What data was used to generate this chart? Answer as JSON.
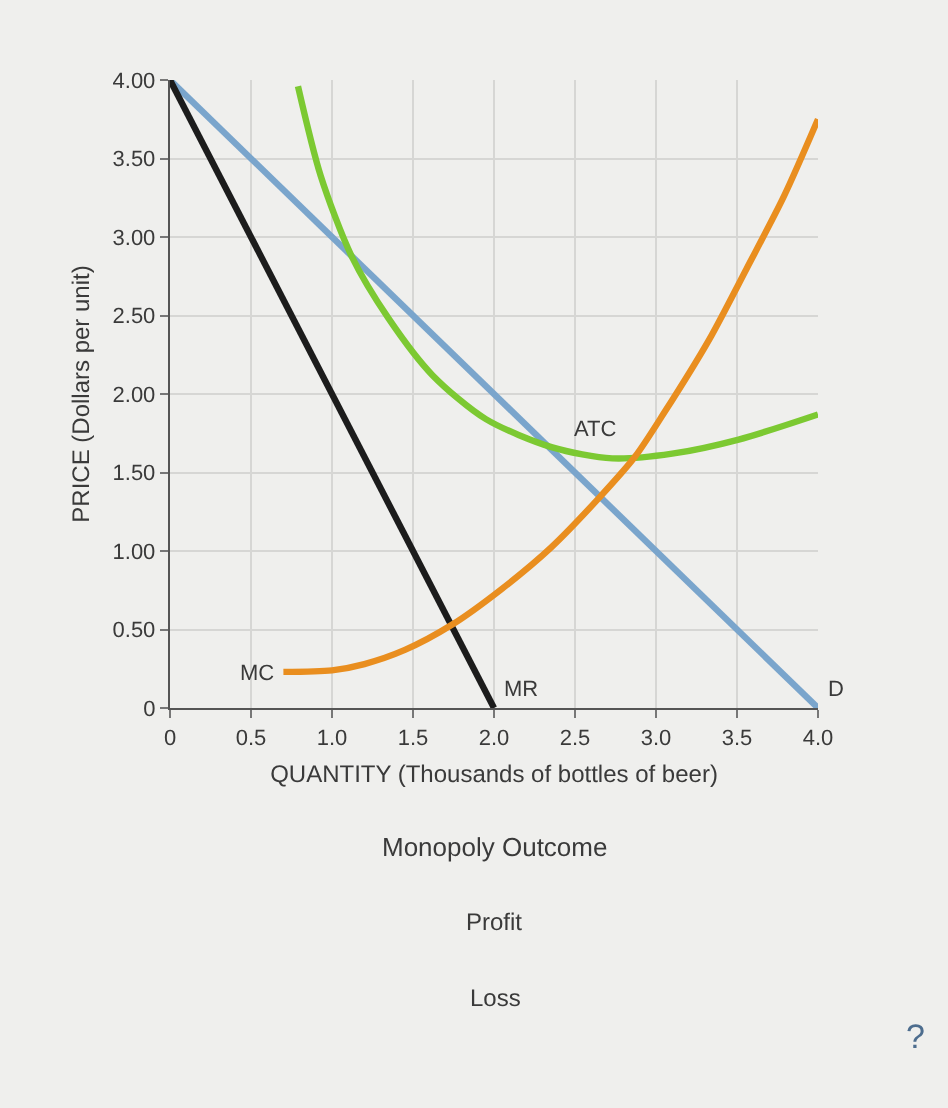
{
  "chart_data": {
    "type": "line",
    "xlabel": "QUANTITY (Thousands of bottles of beer)",
    "ylabel": "PRICE (Dollars per unit)",
    "xlim": [
      0,
      4
    ],
    "ylim": [
      0,
      4
    ],
    "xticks": [
      0,
      0.5,
      {
        "value": 1,
        "label": "1.0"
      },
      1.5,
      {
        "value": 2,
        "label": "2.0"
      },
      2.5,
      {
        "value": 3,
        "label": "3.0"
      },
      3.5,
      {
        "value": 4,
        "label": "4.0"
      }
    ],
    "yticks": [
      0,
      {
        "value": 0.5,
        "label": "0.50"
      },
      {
        "value": 1,
        "label": "1.00"
      },
      {
        "value": 1.5,
        "label": "1.50"
      },
      {
        "value": 2,
        "label": "2.00"
      },
      {
        "value": 2.5,
        "label": "2.50"
      },
      {
        "value": 3,
        "label": "3.00"
      },
      {
        "value": 3.5,
        "label": "3.50"
      },
      {
        "value": 4,
        "label": "4.00"
      }
    ],
    "grid": true,
    "series": [
      {
        "name": "D",
        "color": "#7aa5cc",
        "x": [
          0,
          4
        ],
        "values": [
          4,
          0
        ]
      },
      {
        "name": "MR",
        "color": "#1c1c1c",
        "x": [
          0,
          2
        ],
        "values": [
          4,
          0
        ]
      },
      {
        "name": "ATC",
        "color": "#7cc932",
        "x": [
          0.79,
          0.93,
          1.12,
          1.35,
          1.62,
          1.95,
          2.36,
          2.73,
          3.1,
          3.51,
          4.0
        ],
        "values": [
          3.96,
          3.39,
          2.88,
          2.48,
          2.12,
          1.84,
          1.66,
          1.59,
          1.62,
          1.71,
          1.87
        ]
      },
      {
        "name": "MC",
        "color": "#e98e1f",
        "x": [
          0.7,
          1.0,
          1.2,
          1.45,
          1.74,
          2.05,
          2.35,
          2.65,
          2.87,
          3.05,
          3.33,
          3.56,
          3.79,
          4.0
        ],
        "values": [
          0.23,
          0.24,
          0.28,
          0.37,
          0.53,
          0.76,
          1.02,
          1.34,
          1.6,
          1.88,
          2.35,
          2.8,
          3.26,
          3.75
        ]
      }
    ],
    "annotations": [
      "Monopoly Outcome",
      "Profit",
      "Loss",
      "?"
    ]
  }
}
